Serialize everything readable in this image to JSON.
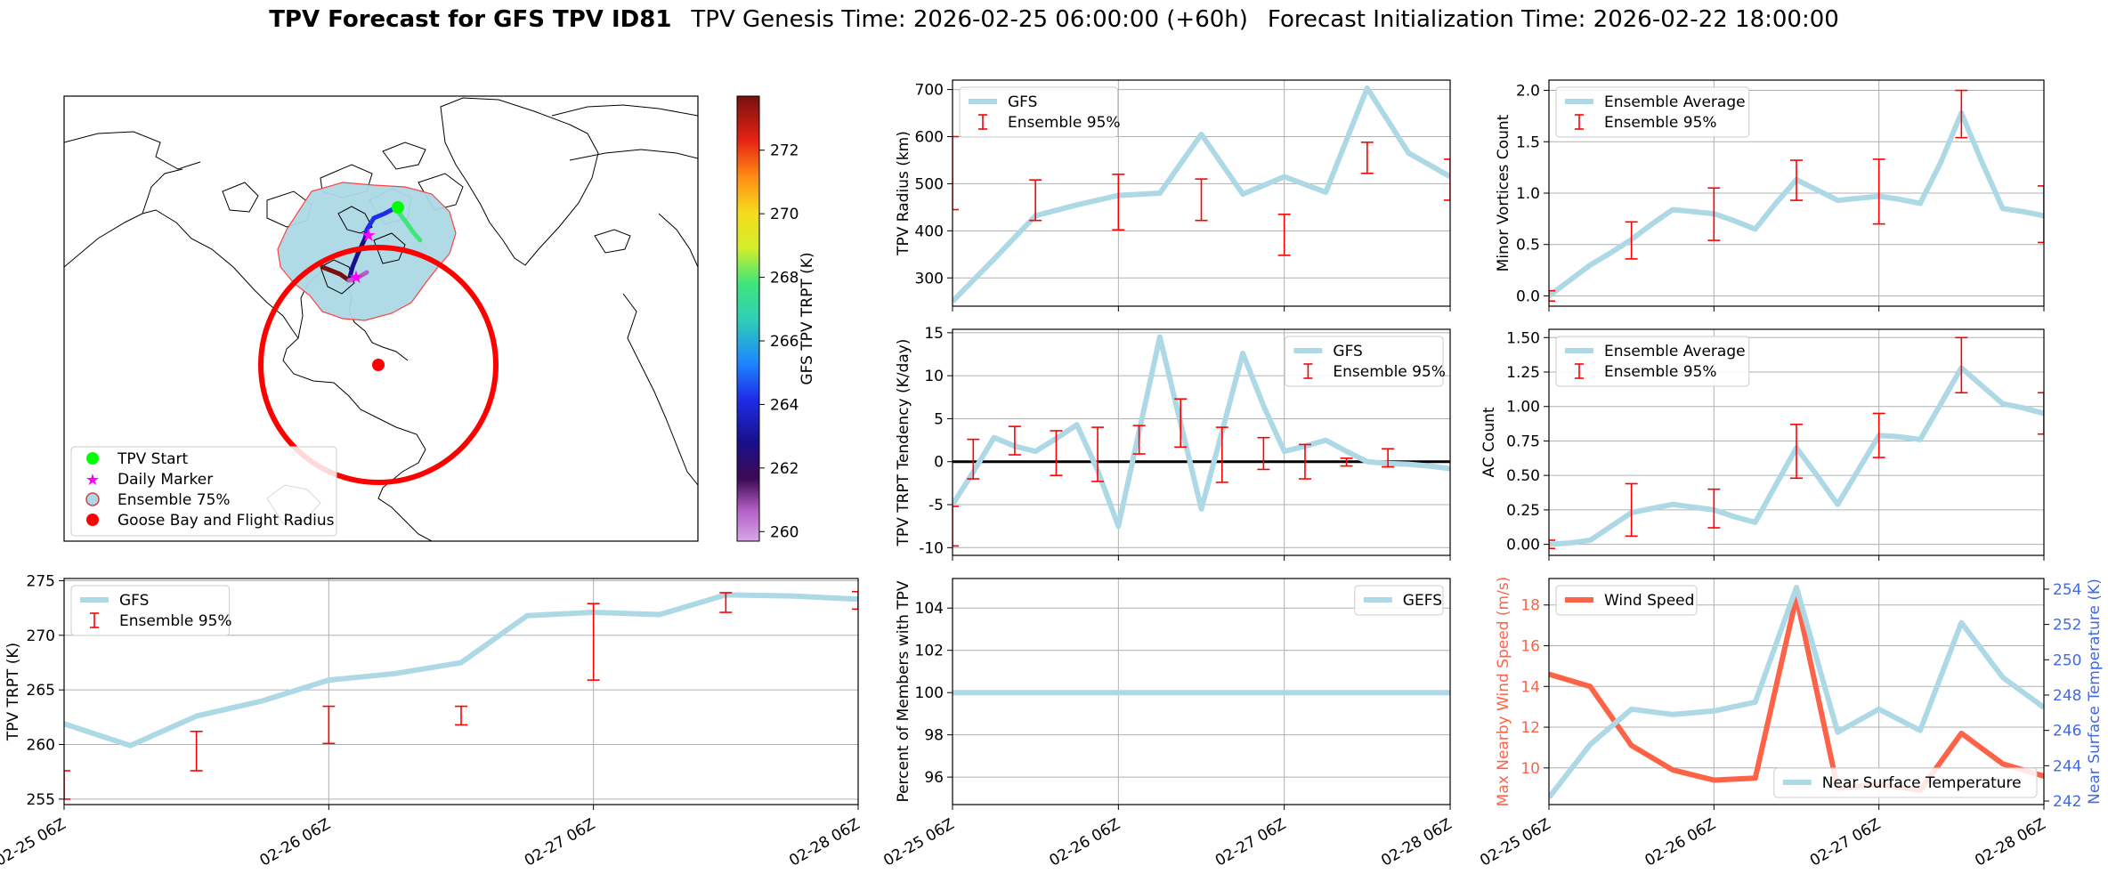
{
  "figure_title": {
    "bold": "TPV Forecast for GFS TPV ID81",
    "genesis": "TPV Genesis Time: 2026-02-25 06:00:00 (+60h)",
    "init": "Forecast Initialization Time: 2026-02-22 18:00:00"
  },
  "colors": {
    "gfs_line": "#add8e6",
    "ensemble_bar": "#ff0000",
    "wind_line": "#ff6347",
    "temp_axis": "#4169e1",
    "zero_line": "#000000",
    "grid": "#b0b0b0"
  },
  "map_panel": {
    "legend": [
      {
        "label": "TPV Start",
        "symbol": "green-dot"
      },
      {
        "label": "Daily Marker",
        "symbol": "magenta-star"
      },
      {
        "label": "Ensemble 75%",
        "symbol": "lightblue-dot"
      },
      {
        "label": "Goose Bay and Flight Radius",
        "symbol": "red-dot"
      }
    ],
    "colorbar": {
      "label": "GFS TPV TRPT (K)",
      "min": 259.7,
      "max": 273.7,
      "ticks": [
        260,
        262,
        264,
        266,
        268,
        270,
        272
      ]
    }
  },
  "chart_data": [
    {
      "id": "trpt",
      "type": "line",
      "title": "",
      "xlabel": "",
      "ylabel": "TPV TRPT (K)",
      "xlim": [
        0,
        72
      ],
      "ylim": [
        254.5,
        275.2
      ],
      "x_ticks": [
        0,
        24,
        48,
        72
      ],
      "x_tick_labels": [
        "02-25 06Z",
        "02-26 06Z",
        "02-27 06Z",
        "02-28 06Z"
      ],
      "y_ticks": [
        255,
        260,
        265,
        270,
        275
      ],
      "legend": [
        {
          "label": "GFS",
          "kind": "line"
        },
        {
          "label": "Ensemble 95%",
          "kind": "errorbar"
        }
      ],
      "legend_pos": "upper-left",
      "series": [
        {
          "name": "GFS",
          "x": [
            0,
            6,
            12,
            18,
            24,
            30,
            36,
            42,
            48,
            54,
            60,
            66,
            72
          ],
          "values": [
            261.9,
            259.9,
            262.6,
            264.0,
            265.9,
            266.5,
            267.5,
            271.8,
            272.1,
            271.9,
            273.7,
            273.6,
            273.3
          ]
        }
      ],
      "errorbars": [
        {
          "x": 0,
          "low": 255.0,
          "high": 257.6
        },
        {
          "x": 12,
          "low": 257.6,
          "high": 261.2
        },
        {
          "x": 24,
          "low": 260.1,
          "high": 263.5
        },
        {
          "x": 36,
          "low": 261.8,
          "high": 263.5
        },
        {
          "x": 48,
          "low": 265.9,
          "high": 272.9
        },
        {
          "x": 60,
          "low": 272.1,
          "high": 273.9
        },
        {
          "x": 72,
          "low": 272.4,
          "high": 274.0
        }
      ]
    },
    {
      "id": "radius",
      "type": "line",
      "title": "",
      "xlabel": "",
      "ylabel": "TPV Radius (km)",
      "xlim": [
        0,
        72
      ],
      "ylim": [
        240,
        720
      ],
      "x_ticks": [
        0,
        24,
        48,
        72
      ],
      "x_tick_labels": [],
      "y_ticks": [
        300,
        400,
        500,
        600,
        700
      ],
      "legend": [
        {
          "label": "GFS",
          "kind": "line"
        },
        {
          "label": "Ensemble 95%",
          "kind": "errorbar"
        }
      ],
      "legend_pos": "upper-left",
      "series": [
        {
          "name": "GFS",
          "x": [
            0,
            6,
            12,
            18,
            24,
            30,
            36,
            42,
            48,
            54,
            60,
            66,
            72
          ],
          "values": [
            250,
            340,
            432,
            455,
            475,
            480,
            605,
            478,
            515,
            482,
            703,
            565,
            515
          ]
        }
      ],
      "errorbars": [
        {
          "x": 0,
          "low": 445,
          "high": 600
        },
        {
          "x": 12,
          "low": 422,
          "high": 508
        },
        {
          "x": 24,
          "low": 402,
          "high": 520
        },
        {
          "x": 36,
          "low": 422,
          "high": 510
        },
        {
          "x": 48,
          "low": 348,
          "high": 435
        },
        {
          "x": 60,
          "low": 522,
          "high": 588
        },
        {
          "x": 72,
          "low": 465,
          "high": 552
        }
      ]
    },
    {
      "id": "minor_vortices",
      "type": "line",
      "title": "",
      "xlabel": "",
      "ylabel": "Minor Vortices Count",
      "xlim": [
        0,
        72
      ],
      "ylim": [
        -0.1,
        2.1
      ],
      "x_ticks": [
        0,
        24,
        48,
        72
      ],
      "x_tick_labels": [],
      "y_ticks": [
        0.0,
        0.5,
        1.0,
        1.5,
        2.0
      ],
      "y_tick_labels": [
        "0.0",
        "0.5",
        "1.0",
        "1.5",
        "2.0"
      ],
      "legend": [
        {
          "label": "Ensemble Average",
          "kind": "line"
        },
        {
          "label": "Ensemble 95%",
          "kind": "errorbar"
        }
      ],
      "legend_pos": "upper-left",
      "series": [
        {
          "name": "Ensemble Average",
          "x": [
            0,
            3,
            6,
            9,
            12,
            15,
            18,
            21,
            24,
            27,
            30,
            33,
            36,
            39,
            42,
            45,
            48,
            51,
            54,
            57,
            60,
            63,
            66,
            69,
            72
          ],
          "values": [
            0.0,
            0.15,
            0.3,
            0.42,
            0.55,
            0.7,
            0.84,
            0.82,
            0.8,
            0.73,
            0.65,
            0.9,
            1.13,
            1.03,
            0.93,
            0.95,
            0.97,
            0.94,
            0.9,
            1.3,
            1.78,
            1.3,
            0.85,
            0.82,
            0.78
          ]
        }
      ],
      "errorbars": [
        {
          "x": 0,
          "low": -0.05,
          "high": 0.05
        },
        {
          "x": 12,
          "low": 0.36,
          "high": 0.72
        },
        {
          "x": 24,
          "low": 0.54,
          "high": 1.05
        },
        {
          "x": 36,
          "low": 0.93,
          "high": 1.32
        },
        {
          "x": 48,
          "low": 0.7,
          "high": 1.33
        },
        {
          "x": 60,
          "low": 1.54,
          "high": 2.0
        },
        {
          "x": 72,
          "low": 0.52,
          "high": 1.07
        }
      ]
    },
    {
      "id": "tendency",
      "type": "line",
      "title": "",
      "xlabel": "",
      "ylabel": "TPV TRPT Tendency (K/day)",
      "xlim": [
        0,
        72
      ],
      "ylim": [
        -10.9,
        15.4
      ],
      "x_ticks": [
        0,
        24,
        48,
        72
      ],
      "x_tick_labels": [],
      "y_ticks": [
        -10,
        -5,
        0,
        5,
        10,
        15
      ],
      "legend": [
        {
          "label": "GFS",
          "kind": "line"
        },
        {
          "label": "Ensemble 95%",
          "kind": "errorbar"
        }
      ],
      "legend_pos": "upper-right",
      "zero_line": 0,
      "series": [
        {
          "name": "GFS",
          "x": [
            0,
            3,
            6,
            9,
            12,
            15,
            18,
            21,
            24,
            27,
            30,
            33,
            36,
            39,
            42,
            45,
            48,
            51,
            54,
            57,
            60,
            63,
            66,
            69,
            72
          ],
          "values": [
            -5.0,
            -1.2,
            2.8,
            1.8,
            1.2,
            2.7,
            4.3,
            -1.0,
            -7.5,
            3.5,
            14.5,
            4.5,
            -5.5,
            3.5,
            12.6,
            6.5,
            1.2,
            1.8,
            2.5,
            1.2,
            0.0,
            -0.2,
            -0.3,
            -0.5,
            -0.8
          ]
        }
      ],
      "errorbars": [
        {
          "x": 0,
          "low": -9.8,
          "high": -5.2
        },
        {
          "x": 3,
          "low": -2.0,
          "high": 2.6
        },
        {
          "x": 9,
          "low": 0.8,
          "high": 4.1
        },
        {
          "x": 15,
          "low": -1.6,
          "high": 3.6
        },
        {
          "x": 21,
          "low": -2.3,
          "high": 4.0
        },
        {
          "x": 27,
          "low": 0.9,
          "high": 4.2
        },
        {
          "x": 33,
          "low": 1.7,
          "high": 7.3
        },
        {
          "x": 39,
          "low": -2.4,
          "high": 4.0
        },
        {
          "x": 45,
          "low": -0.9,
          "high": 2.8
        },
        {
          "x": 51,
          "low": -2.0,
          "high": 2.0
        },
        {
          "x": 57,
          "low": -0.5,
          "high": 0.4
        },
        {
          "x": 63,
          "low": -0.6,
          "high": 1.5
        }
      ]
    },
    {
      "id": "ac_count",
      "type": "line",
      "title": "",
      "xlabel": "",
      "ylabel": "AC Count",
      "xlim": [
        0,
        72
      ],
      "ylim": [
        -0.08,
        1.56
      ],
      "x_ticks": [
        0,
        24,
        48,
        72
      ],
      "x_tick_labels": [],
      "y_ticks": [
        0.0,
        0.25,
        0.5,
        0.75,
        1.0,
        1.25,
        1.5
      ],
      "y_tick_labels": [
        "0.00",
        "0.25",
        "0.50",
        "0.75",
        "1.00",
        "1.25",
        "1.50"
      ],
      "legend": [
        {
          "label": "Ensemble Average",
          "kind": "line"
        },
        {
          "label": "Ensemble 95%",
          "kind": "errorbar"
        }
      ],
      "legend_pos": "upper-left",
      "series": [
        {
          "name": "Ensemble Average",
          "x": [
            0,
            3,
            6,
            9,
            12,
            15,
            18,
            21,
            24,
            27,
            30,
            33,
            36,
            39,
            42,
            45,
            48,
            51,
            54,
            57,
            60,
            63,
            66,
            69,
            72
          ],
          "values": [
            0.0,
            0.01,
            0.03,
            0.13,
            0.23,
            0.26,
            0.29,
            0.27,
            0.25,
            0.2,
            0.16,
            0.43,
            0.7,
            0.5,
            0.29,
            0.54,
            0.79,
            0.78,
            0.76,
            1.02,
            1.28,
            1.15,
            1.02,
            0.99,
            0.95
          ]
        }
      ],
      "errorbars": [
        {
          "x": 0,
          "low": -0.03,
          "high": 0.03
        },
        {
          "x": 12,
          "low": 0.06,
          "high": 0.44
        },
        {
          "x": 24,
          "low": 0.12,
          "high": 0.4
        },
        {
          "x": 36,
          "low": 0.48,
          "high": 0.87
        },
        {
          "x": 48,
          "low": 0.63,
          "high": 0.95
        },
        {
          "x": 60,
          "low": 1.1,
          "high": 1.5
        },
        {
          "x": 72,
          "low": 0.8,
          "high": 1.1
        }
      ]
    },
    {
      "id": "percent_members",
      "type": "line",
      "title": "",
      "xlabel": "",
      "ylabel": "Percent of Members with TPV",
      "xlim": [
        0,
        72
      ],
      "ylim": [
        94.7,
        105.4
      ],
      "x_ticks": [
        0,
        24,
        48,
        72
      ],
      "x_tick_labels": [
        "02-25 06Z",
        "02-26 06Z",
        "02-27 06Z",
        "02-28 06Z"
      ],
      "y_ticks": [
        96,
        98,
        100,
        102,
        104
      ],
      "legend": [
        {
          "label": "GEFS",
          "kind": "line"
        }
      ],
      "legend_pos": "upper-right",
      "series": [
        {
          "name": "GEFS",
          "x": [
            0,
            72
          ],
          "values": [
            100,
            100
          ]
        }
      ]
    },
    {
      "id": "wind_temp",
      "type": "line",
      "title": "",
      "xlabel": "",
      "ylabel": "Max Nearby Wind Speed (m/s)",
      "ylabel_right": "Near Surface Temperature (K)",
      "xlim": [
        0,
        72
      ],
      "ylim": [
        8.2,
        19.3
      ],
      "ylim_right": [
        241.8,
        254.6
      ],
      "x_ticks": [
        0,
        24,
        48,
        72
      ],
      "x_tick_labels": [
        "02-25 06Z",
        "02-26 06Z",
        "02-27 06Z",
        "02-28 06Z"
      ],
      "y_ticks": [
        10,
        12,
        14,
        16,
        18
      ],
      "y_ticks_right": [
        242,
        244,
        246,
        248,
        250,
        252,
        254
      ],
      "legend": [
        {
          "label": "Wind Speed",
          "kind": "line"
        }
      ],
      "legend_right": [
        {
          "label": "Near Surface Temperature",
          "kind": "line"
        }
      ],
      "legend_pos": "upper-left",
      "legend_right_pos": "lower-right",
      "series": [
        {
          "name": "Wind Speed",
          "axis": "left",
          "x": [
            0,
            6,
            12,
            18,
            24,
            30,
            36,
            42,
            48,
            54,
            60,
            66,
            72
          ],
          "values": [
            14.6,
            14.0,
            11.1,
            9.9,
            9.4,
            9.5,
            18.4,
            9.0,
            9.2,
            8.9,
            11.7,
            10.2,
            9.6
          ]
        },
        {
          "name": "Near Surface Temperature",
          "axis": "right",
          "x": [
            0,
            6,
            12,
            18,
            24,
            30,
            36,
            42,
            48,
            54,
            60,
            66,
            72
          ],
          "values": [
            242.2,
            245.2,
            247.2,
            246.9,
            247.1,
            247.6,
            254.1,
            245.9,
            247.2,
            246.0,
            252.1,
            249.0,
            247.3
          ]
        }
      ]
    }
  ]
}
